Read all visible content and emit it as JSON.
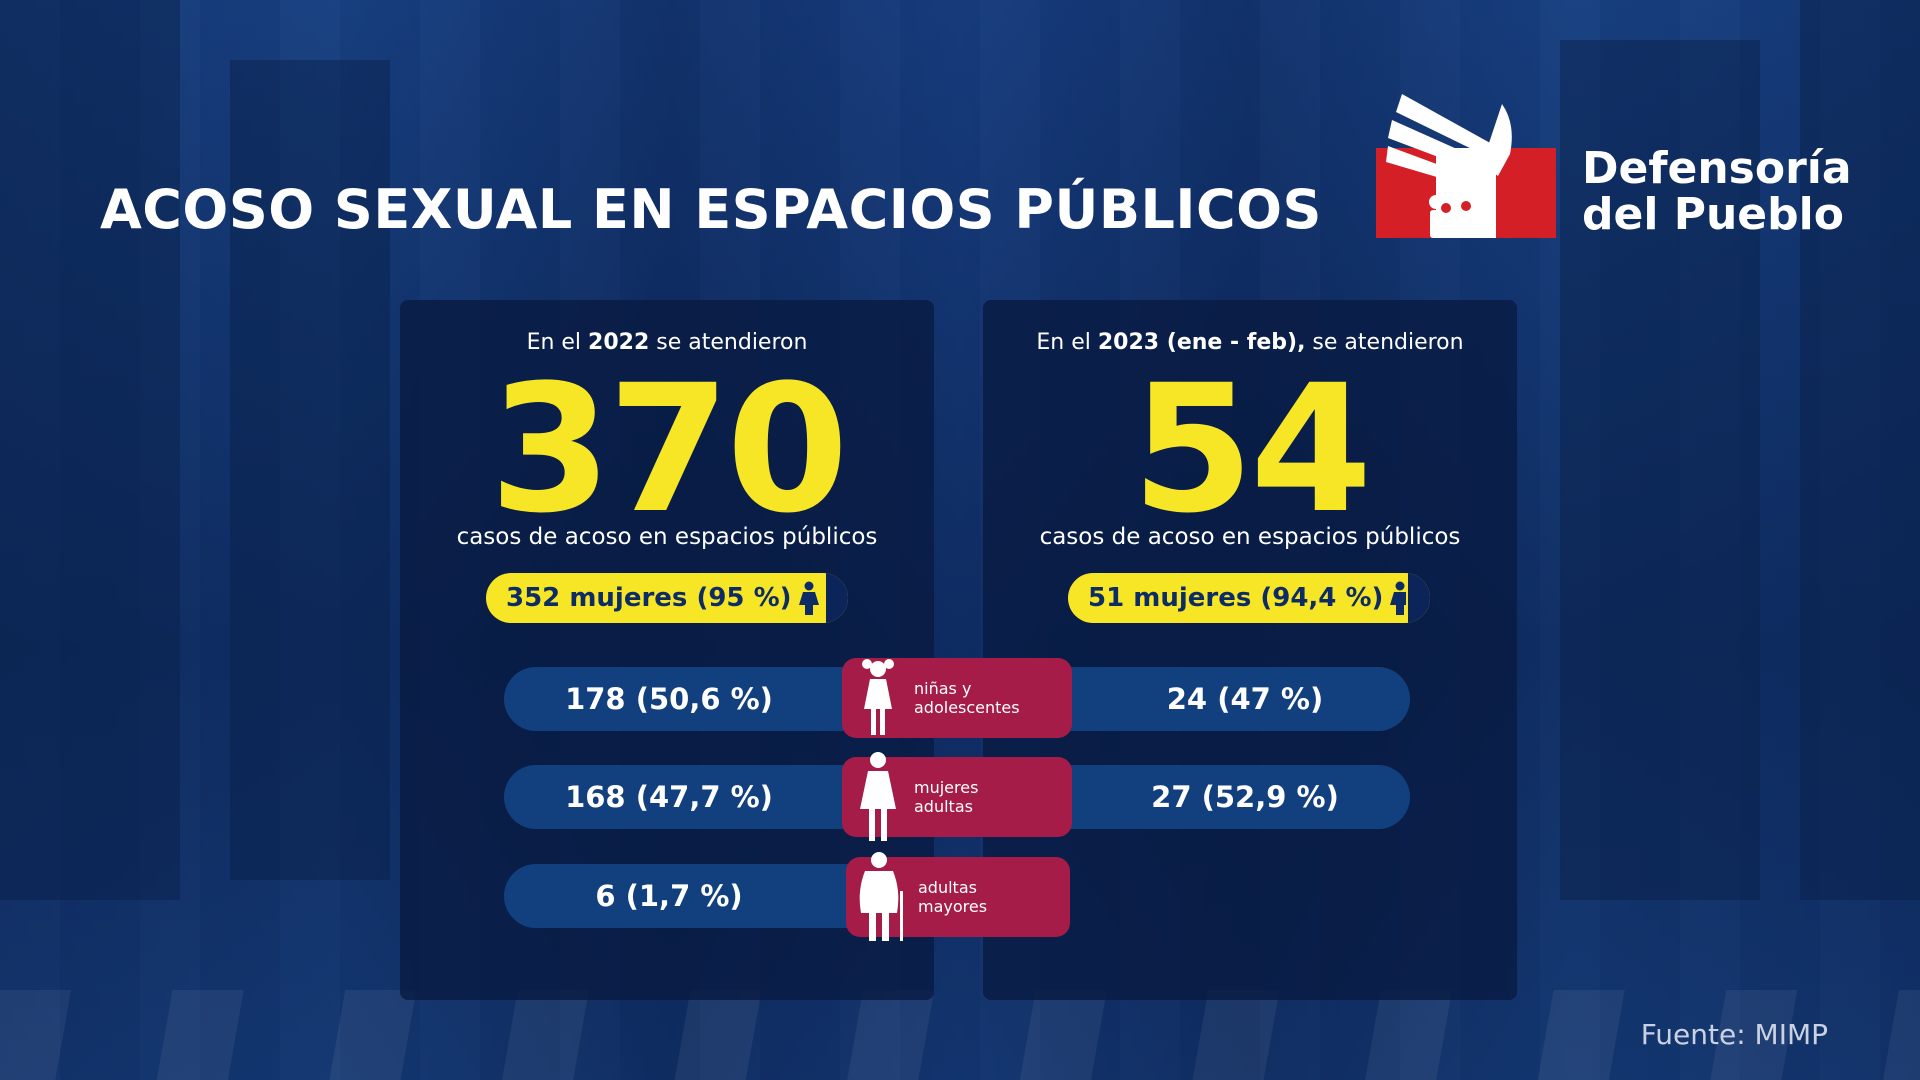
{
  "title": "ACOSO SEXUAL EN ESPACIOS PÚBLICOS",
  "logo": {
    "line1": "Defensoría",
    "line2": "del Pueblo"
  },
  "left": {
    "intro_pre": "En el ",
    "intro_bold": "2022",
    "intro_post": " se atendieron",
    "number": "370",
    "caption": "casos de acoso en espacios públicos",
    "women": "352 mujeres (95 %)",
    "rows": [
      "178 (50,6 %)",
      "168 (47,7 %)",
      "6 (1,7 %)"
    ]
  },
  "right": {
    "intro_pre": "En el ",
    "intro_bold": "2023 (ene - feb),",
    "intro_post": " se atendieron",
    "number": "54",
    "caption": "casos de acoso en espacios públicos",
    "women": "51 mujeres (94,4 %)",
    "rows": [
      "24 (47 %)",
      "27 (52,9 %)"
    ]
  },
  "categories": [
    {
      "label": "niñas y\nadolescentes",
      "icon": "girl-icon"
    },
    {
      "label": "mujeres\nadultas",
      "icon": "woman-icon"
    },
    {
      "label": "adultas\nmayores",
      "icon": "elderly-woman-icon"
    }
  ],
  "source": "Fuente: MIMP",
  "colors": {
    "accent_yellow": "#f7e625",
    "category_red": "#a41c47",
    "bar_blue": "#12407e",
    "flag_red": "#d41f26"
  }
}
